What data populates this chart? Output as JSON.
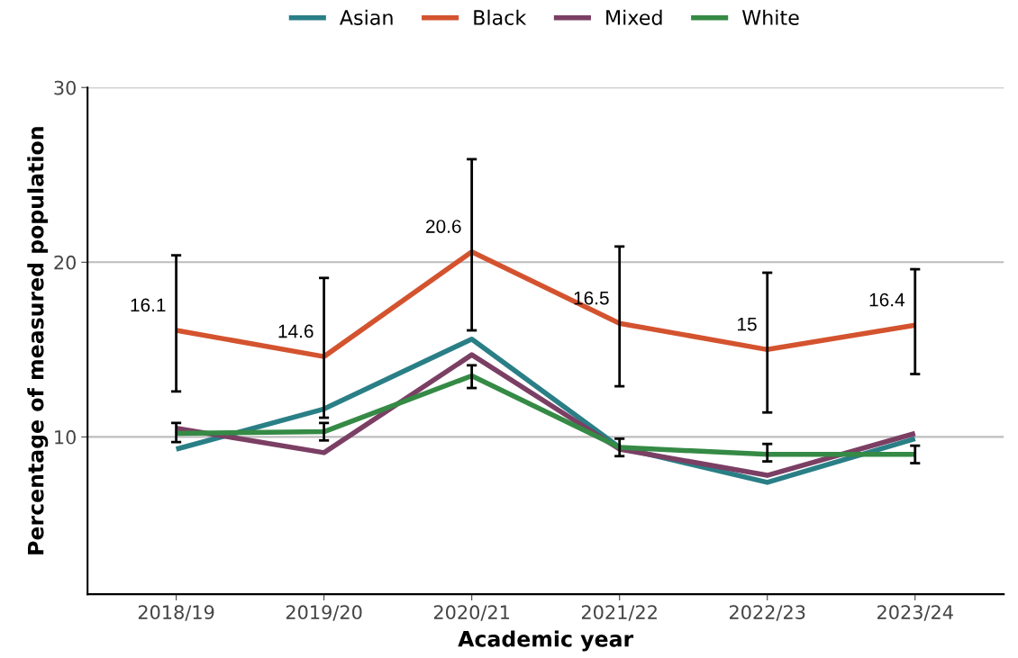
{
  "chart_data": {
    "type": "line",
    "xlabel": "Academic year",
    "ylabel": "Percentage of measured population",
    "categories": [
      "2018/19",
      "2019/20",
      "2020/21",
      "2021/22",
      "2022/23",
      "2023/24"
    ],
    "series": [
      {
        "name": "Asian",
        "color": "#2a7f86",
        "values": [
          9.3,
          11.6,
          15.6,
          9.4,
          7.4,
          9.9
        ]
      },
      {
        "name": "Black",
        "color": "#d4532f",
        "values": [
          16.1,
          14.6,
          20.6,
          16.5,
          15,
          16.4
        ],
        "value_labels": [
          "16.1",
          "14.6",
          "20.6",
          "16.5",
          "15",
          "16.4"
        ],
        "errors": [
          [
            12.6,
            20.4
          ],
          [
            11.1,
            19.1
          ],
          [
            16.1,
            25.9
          ],
          [
            12.9,
            20.9
          ],
          [
            11.4,
            19.4
          ],
          [
            13.6,
            19.6
          ]
        ]
      },
      {
        "name": "Mixed",
        "color": "#7b3f64",
        "values": [
          10.5,
          9.1,
          14.7,
          9.3,
          7.8,
          10.2
        ]
      },
      {
        "name": "White",
        "color": "#358a45",
        "values": [
          10.2,
          10.3,
          13.5,
          9.4,
          9.0,
          9.0
        ],
        "errors": [
          [
            9.7,
            10.8
          ],
          [
            9.8,
            10.8
          ],
          [
            12.8,
            14.1
          ],
          [
            8.9,
            9.9
          ],
          [
            8.6,
            9.6
          ],
          [
            8.5,
            9.5
          ]
        ]
      }
    ],
    "ylim": [
      1,
      30
    ],
    "yticks": [
      10,
      20,
      30
    ],
    "grid": "y",
    "legend": "top",
    "marker": "none",
    "line_style": "solid"
  }
}
